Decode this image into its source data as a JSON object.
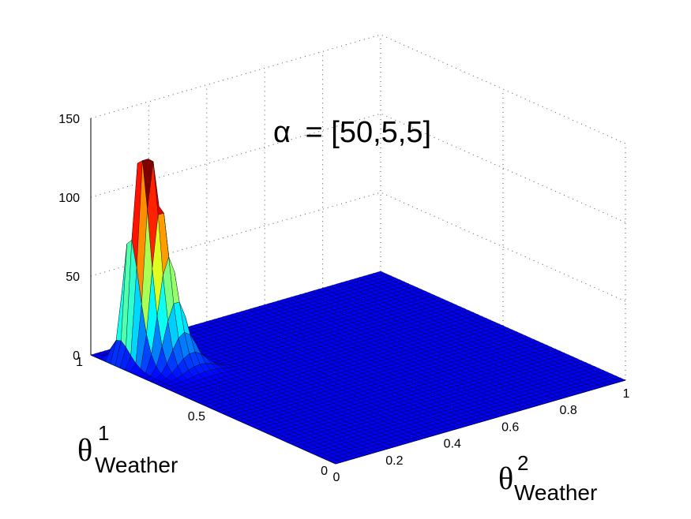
{
  "chart_data": {
    "type": "surface",
    "title_prefix": "α",
    "title_value": "= [50,5,5]",
    "x_axis": {
      "symbol": "θ",
      "superscript": "2",
      "subscript": "Weather",
      "range": [
        0,
        1
      ],
      "ticks": [
        "0",
        "0.2",
        "0.4",
        "0.6",
        "0.8",
        "1"
      ]
    },
    "y_axis": {
      "symbol": "θ",
      "superscript": "1",
      "subscript": "Weather",
      "range": [
        0,
        1
      ],
      "ticks": [
        "0",
        "0.5",
        "1"
      ]
    },
    "z_axis": {
      "range": [
        0,
        150
      ],
      "ticks": [
        "0",
        "50",
        "100",
        "150"
      ]
    },
    "alpha": [
      50,
      5,
      5
    ],
    "peak_location": {
      "theta1": 0.82,
      "theta2": 0.09
    },
    "peak_value": 121,
    "grid": true,
    "colormap": "jet"
  }
}
